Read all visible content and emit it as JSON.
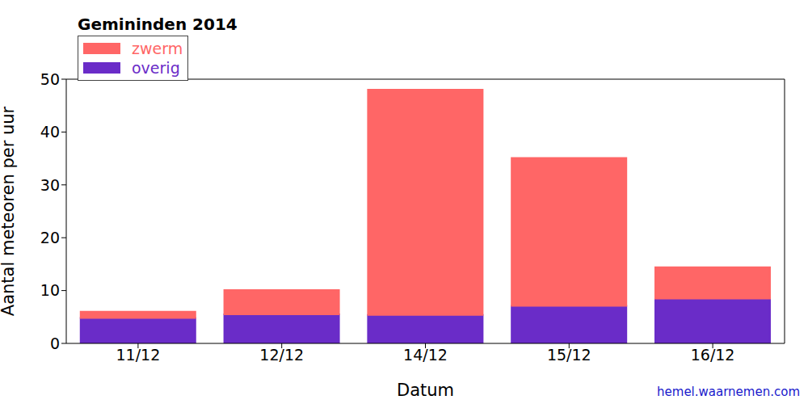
{
  "chart_data": {
    "type": "bar",
    "title": "Gemininden 2014",
    "x_label": "Datum",
    "y_label": "Aantal meteoren per uur",
    "annotations": [
      "hemel.waarnemen.com"
    ],
    "categories": [
      "11/12",
      "12/12",
      "14/12",
      "15/12",
      "16/12"
    ],
    "series": [
      {
        "name": "overig",
        "color": "#6a2cc8",
        "values": [
          4.8,
          5.5,
          5.4,
          7.1,
          8.5
        ]
      },
      {
        "name": "zwerm",
        "color": "#ff6666",
        "values": [
          1.2,
          4.6,
          42.6,
          28.0,
          5.9
        ]
      }
    ],
    "stacked": true,
    "ylim": [
      0,
      50
    ],
    "yticks": [
      0,
      10,
      20,
      30,
      40,
      50
    ],
    "grid": false,
    "legend": "upper left"
  }
}
